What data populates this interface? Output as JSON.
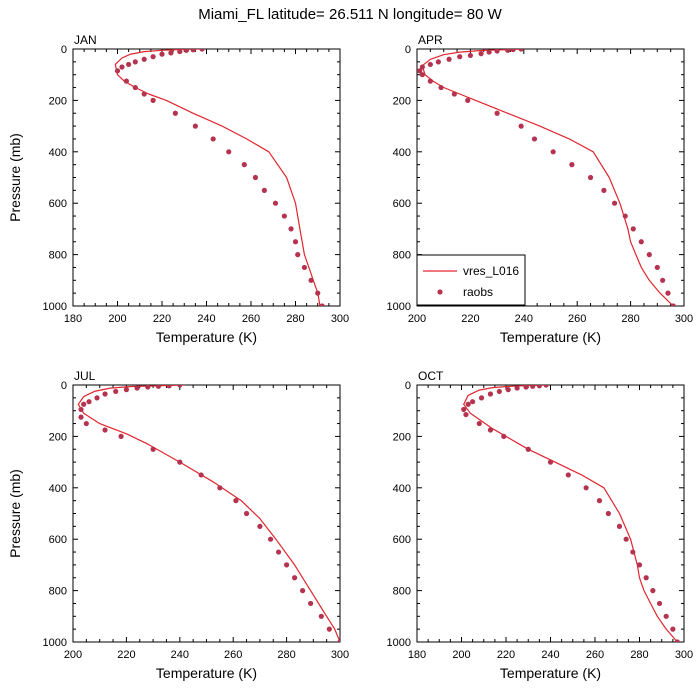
{
  "title": "Miami_FL  latitude= 26.511 N longitude= 80 W",
  "xlabel": "Temperature (K)",
  "ylabel": "Pressure (mb)",
  "legend": {
    "model": "vres_L016",
    "obs": "raobs"
  },
  "colors": {
    "model_line": "#e0262e",
    "obs_marker": "#b5334f"
  },
  "chart_data": [
    {
      "type": "line",
      "panel": "JAN",
      "xlim": [
        180,
        300
      ],
      "ylim": [
        1000,
        0
      ],
      "xticks": [
        180,
        200,
        220,
        240,
        260,
        280,
        300
      ],
      "yticks": [
        0,
        200,
        400,
        600,
        800,
        1000
      ],
      "series": [
        {
          "name": "vres_L016",
          "style": "line",
          "x": [
            237,
            228,
            220,
            212,
            206,
            202,
            199,
            200,
            203,
            208,
            214,
            222,
            234,
            247,
            258,
            268,
            276,
            280,
            282,
            283,
            284,
            286,
            288,
            290,
            291
          ],
          "y": [
            0,
            2,
            5,
            10,
            20,
            35,
            60,
            100,
            125,
            150,
            175,
            200,
            250,
            300,
            350,
            400,
            500,
            600,
            700,
            750,
            800,
            850,
            900,
            950,
            1000
          ]
        },
        {
          "name": "raobs",
          "style": "markers",
          "x": [
            238,
            234,
            231,
            228,
            224,
            220,
            216,
            212,
            208,
            205,
            202,
            200,
            204,
            208,
            212,
            216,
            226,
            235,
            243,
            250,
            257,
            262,
            266,
            271,
            275,
            278,
            280,
            281,
            284,
            287,
            290,
            292
          ],
          "y": [
            0,
            3,
            5,
            10,
            15,
            20,
            30,
            40,
            50,
            60,
            70,
            85,
            125,
            150,
            175,
            200,
            250,
            300,
            350,
            400,
            450,
            500,
            550,
            600,
            650,
            700,
            750,
            800,
            850,
            900,
            950,
            1000
          ]
        }
      ]
    },
    {
      "type": "line",
      "panel": "APR",
      "xlim": [
        200,
        300
      ],
      "ylim": [
        1000,
        0
      ],
      "xticks": [
        200,
        220,
        240,
        260,
        280,
        300
      ],
      "yticks": [
        0,
        200,
        400,
        600,
        800,
        1000
      ],
      "series": [
        {
          "name": "vres_L016",
          "style": "line",
          "x": [
            240,
            232,
            224,
            216,
            210,
            205,
            202,
            203,
            206,
            210,
            216,
            222,
            234,
            246,
            257,
            266,
            272,
            276,
            279,
            280,
            282,
            284,
            287,
            291,
            296
          ],
          "y": [
            0,
            3,
            6,
            12,
            22,
            40,
            65,
            100,
            125,
            150,
            175,
            200,
            250,
            300,
            350,
            400,
            500,
            600,
            700,
            750,
            800,
            850,
            900,
            950,
            1000
          ]
        },
        {
          "name": "raobs",
          "style": "markers",
          "x": [
            239,
            236,
            234,
            230,
            227,
            224,
            220,
            216,
            212,
            208,
            205,
            202,
            201,
            202,
            205,
            209,
            214,
            219,
            230,
            239,
            244,
            251,
            258,
            265,
            270,
            274,
            278,
            281,
            284,
            287,
            290,
            292,
            294,
            296
          ],
          "y": [
            0,
            2,
            5,
            8,
            12,
            18,
            25,
            30,
            40,
            50,
            60,
            70,
            85,
            100,
            125,
            150,
            175,
            200,
            250,
            300,
            350,
            400,
            450,
            500,
            550,
            600,
            650,
            700,
            750,
            800,
            850,
            900,
            950,
            1000
          ]
        }
      ]
    },
    {
      "type": "line",
      "panel": "JUL",
      "xlim": [
        200,
        300
      ],
      "ylim": [
        1000,
        0
      ],
      "xticks": [
        200,
        220,
        240,
        260,
        280,
        300
      ],
      "yticks": [
        0,
        200,
        400,
        600,
        800,
        1000
      ],
      "series": [
        {
          "name": "vres_L016",
          "style": "line",
          "x": [
            242,
            232,
            222,
            214,
            208,
            204,
            202,
            204,
            210,
            220,
            228,
            240,
            253,
            263,
            270,
            276,
            283,
            286,
            289,
            292,
            295,
            298,
            300
          ],
          "y": [
            0,
            3,
            6,
            12,
            25,
            45,
            75,
            110,
            150,
            190,
            230,
            300,
            380,
            450,
            520,
            600,
            700,
            750,
            800,
            850,
            900,
            950,
            1000
          ]
        },
        {
          "name": "raobs",
          "style": "markers",
          "x": [
            240,
            236,
            232,
            228,
            224,
            220,
            216,
            212,
            209,
            206,
            204,
            203,
            203,
            205,
            212,
            218,
            230,
            240,
            248,
            255,
            261,
            265,
            270,
            274,
            277,
            280,
            283,
            286,
            289,
            293,
            296,
            300
          ],
          "y": [
            0,
            3,
            5,
            8,
            12,
            18,
            25,
            35,
            50,
            65,
            75,
            95,
            125,
            150,
            175,
            200,
            250,
            300,
            350,
            400,
            450,
            500,
            550,
            600,
            650,
            700,
            750,
            800,
            850,
            900,
            950,
            1000
          ]
        }
      ]
    },
    {
      "type": "line",
      "panel": "OCT",
      "xlim": [
        180,
        300
      ],
      "ylim": [
        1000,
        0
      ],
      "xticks": [
        180,
        200,
        220,
        240,
        260,
        280,
        300
      ],
      "yticks": [
        0,
        200,
        400,
        600,
        800,
        1000
      ],
      "series": [
        {
          "name": "vres_L016",
          "style": "line",
          "x": [
            238,
            230,
            222,
            214,
            208,
            203,
            201,
            204,
            209,
            214,
            220,
            230,
            242,
            254,
            264,
            271,
            276,
            279,
            280,
            282,
            285,
            288,
            292,
            297
          ],
          "y": [
            0,
            2,
            5,
            10,
            20,
            40,
            75,
            110,
            140,
            170,
            200,
            250,
            300,
            350,
            400,
            500,
            600,
            700,
            750,
            800,
            850,
            900,
            950,
            1000
          ]
        },
        {
          "name": "raobs",
          "style": "markers",
          "x": [
            238,
            235,
            232,
            229,
            225,
            221,
            217,
            213,
            209,
            205,
            203,
            201,
            202,
            208,
            213,
            219,
            230,
            240,
            248,
            256,
            262,
            266,
            271,
            274,
            277,
            280,
            283,
            286,
            289,
            292,
            295,
            297
          ],
          "y": [
            0,
            3,
            5,
            8,
            12,
            18,
            25,
            35,
            50,
            65,
            75,
            95,
            115,
            150,
            175,
            200,
            250,
            300,
            350,
            400,
            450,
            500,
            550,
            600,
            650,
            700,
            750,
            800,
            850,
            900,
            950,
            1000
          ]
        }
      ]
    }
  ]
}
